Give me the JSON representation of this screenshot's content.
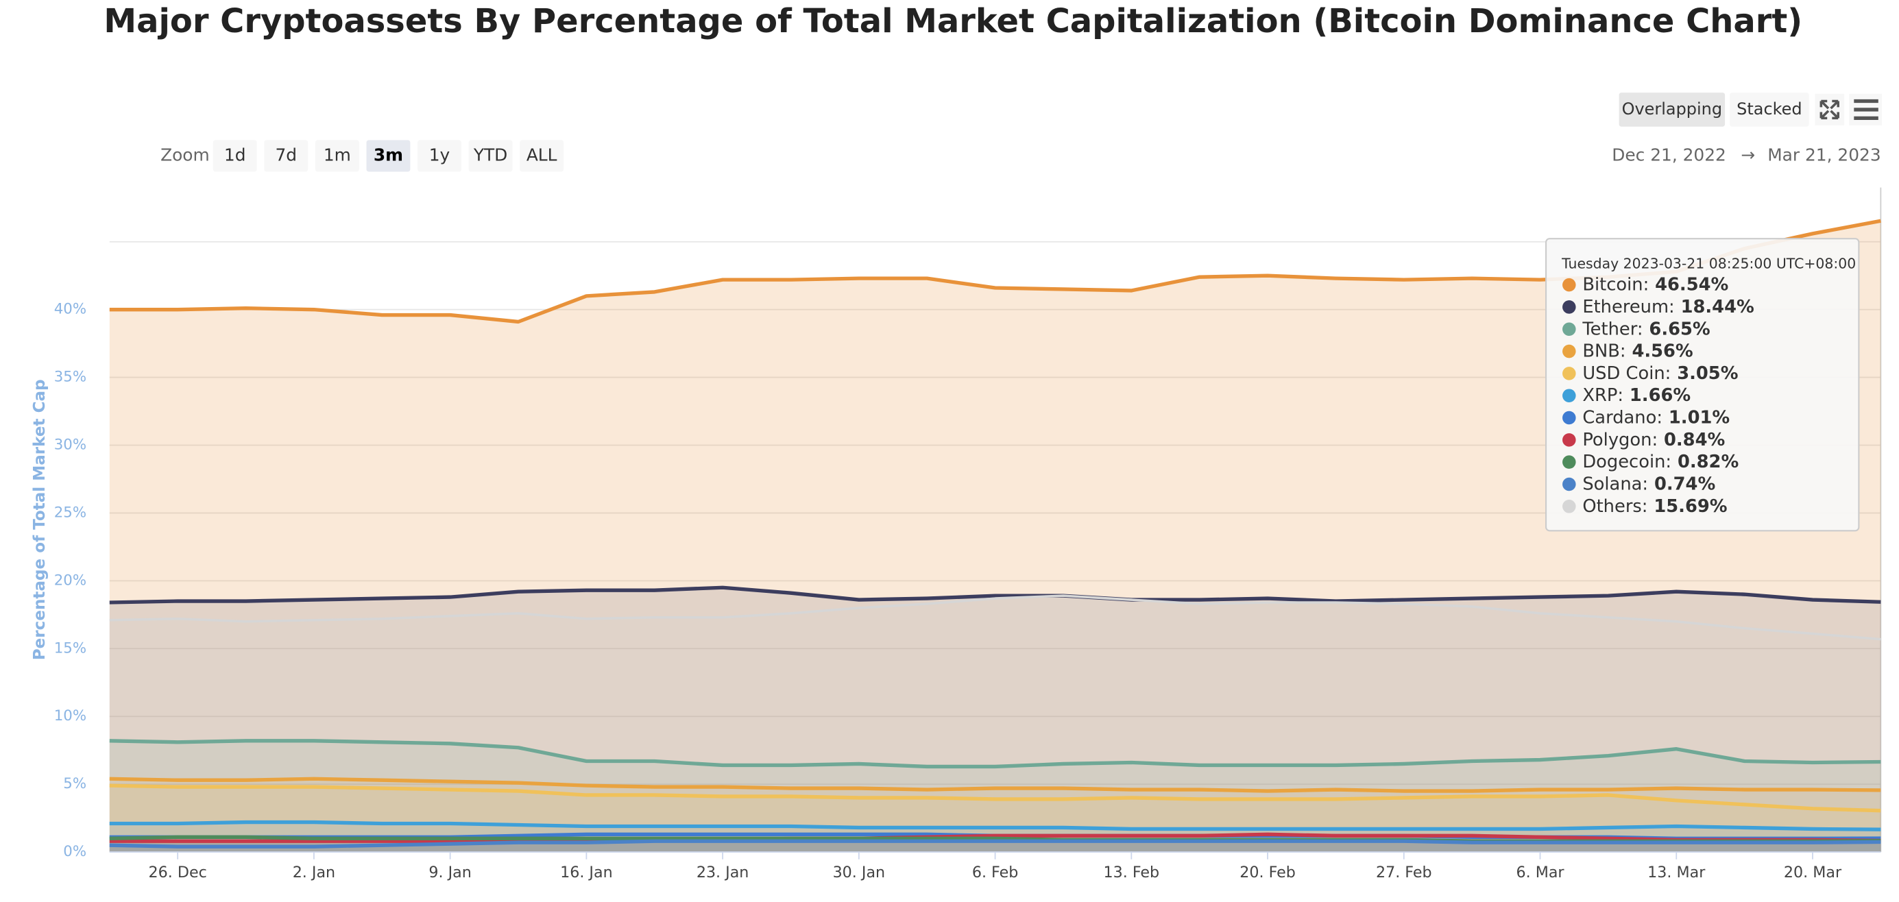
{
  "chart_data": {
    "type": "area",
    "title": "Major Cryptoassets By Percentage of Total Market Capitalization (Bitcoin Dominance Chart)",
    "y_label": "Percentage of Total Market Cap",
    "zoom_label": "Zoom",
    "zoom_buttons": [
      "1d",
      "7d",
      "1m",
      "3m",
      "1y",
      "YTD",
      "ALL"
    ],
    "view_buttons": [
      "Overlapping",
      "Stacked"
    ],
    "range_start": "Dec 21, 2022",
    "range_separator": "→",
    "range_end": "Mar 21, 2023",
    "categories": [
      null,
      "26. Dec",
      null,
      "2. Jan",
      null,
      "9. Jan",
      null,
      "16. Jan",
      null,
      "23. Jan",
      null,
      "30. Jan",
      null,
      "6. Feb",
      null,
      "13. Feb",
      null,
      "20. Feb",
      null,
      "27. Feb",
      null,
      "6. Mar",
      null,
      "13. Mar",
      null,
      "20. Mar",
      null
    ],
    "ylim": [
      0,
      49
    ],
    "yticks": [
      {
        "value": 0,
        "label": "0%"
      },
      {
        "value": 5,
        "label": "5%"
      },
      {
        "value": 10,
        "label": "10%"
      },
      {
        "value": 15,
        "label": "15%"
      },
      {
        "value": 20,
        "label": "20%"
      },
      {
        "value": 25,
        "label": "25%"
      },
      {
        "value": 30,
        "label": "30%"
      },
      {
        "value": 35,
        "label": "35%"
      },
      {
        "value": 40,
        "label": "40%"
      },
      {
        "value": 45,
        "label": null
      }
    ],
    "grid": true,
    "series": [
      {
        "name": "Bitcoin",
        "color": "#e8923a",
        "values": [
          40.0,
          40.0,
          40.1,
          40.0,
          39.6,
          39.6,
          39.1,
          41.0,
          41.3,
          42.2,
          42.2,
          42.3,
          42.3,
          41.6,
          41.5,
          41.4,
          42.4,
          42.5,
          42.3,
          42.2,
          42.3,
          42.2,
          42.4,
          42.8,
          44.5,
          45.6,
          46.54
        ]
      },
      {
        "name": "Ethereum",
        "color": "#3c3d5e",
        "values": [
          18.4,
          18.5,
          18.5,
          18.6,
          18.7,
          18.8,
          19.2,
          19.3,
          19.3,
          19.5,
          19.1,
          18.6,
          18.7,
          18.9,
          18.9,
          18.6,
          18.6,
          18.7,
          18.5,
          18.6,
          18.7,
          18.8,
          18.9,
          19.2,
          19.0,
          18.6,
          18.44
        ]
      },
      {
        "name": "Tether",
        "color": "#6fa896",
        "values": [
          8.2,
          8.1,
          8.2,
          8.2,
          8.1,
          8.0,
          7.7,
          6.7,
          6.7,
          6.4,
          6.4,
          6.5,
          6.3,
          6.3,
          6.5,
          6.6,
          6.4,
          6.4,
          6.4,
          6.5,
          6.7,
          6.8,
          7.1,
          7.6,
          6.7,
          6.6,
          6.65
        ]
      },
      {
        "name": "BNB",
        "color": "#e9a33f",
        "values": [
          5.4,
          5.3,
          5.3,
          5.4,
          5.3,
          5.2,
          5.1,
          4.9,
          4.8,
          4.8,
          4.7,
          4.7,
          4.6,
          4.7,
          4.7,
          4.6,
          4.6,
          4.5,
          4.6,
          4.5,
          4.5,
          4.6,
          4.6,
          4.7,
          4.6,
          4.6,
          4.56
        ]
      },
      {
        "name": "USD Coin",
        "color": "#f0c15a",
        "values": [
          4.9,
          4.8,
          4.8,
          4.8,
          4.7,
          4.6,
          4.5,
          4.2,
          4.2,
          4.1,
          4.1,
          4.0,
          4.0,
          3.9,
          3.9,
          4.0,
          3.9,
          3.9,
          3.9,
          4.0,
          4.1,
          4.1,
          4.2,
          3.8,
          3.5,
          3.2,
          3.05
        ]
      },
      {
        "name": "XRP",
        "color": "#3ea0d9",
        "values": [
          2.1,
          2.1,
          2.2,
          2.2,
          2.1,
          2.1,
          2.0,
          1.9,
          1.9,
          1.9,
          1.9,
          1.8,
          1.8,
          1.8,
          1.8,
          1.7,
          1.7,
          1.7,
          1.7,
          1.7,
          1.7,
          1.7,
          1.8,
          1.9,
          1.8,
          1.7,
          1.66
        ]
      },
      {
        "name": "Cardano",
        "color": "#3e7bd1",
        "values": [
          1.1,
          1.1,
          1.1,
          1.1,
          1.1,
          1.1,
          1.2,
          1.3,
          1.3,
          1.3,
          1.3,
          1.3,
          1.3,
          1.2,
          1.2,
          1.2,
          1.2,
          1.2,
          1.2,
          1.2,
          1.1,
          1.1,
          1.1,
          1.0,
          1.0,
          1.0,
          1.01
        ]
      },
      {
        "name": "Polygon",
        "color": "#c8394a",
        "values": [
          0.8,
          0.8,
          0.8,
          0.8,
          0.8,
          0.8,
          0.9,
          0.9,
          0.9,
          0.9,
          1.0,
          1.0,
          1.1,
          1.2,
          1.2,
          1.2,
          1.2,
          1.3,
          1.2,
          1.2,
          1.2,
          1.1,
          1.0,
          0.9,
          0.9,
          0.9,
          0.84
        ]
      },
      {
        "name": "Dogecoin",
        "color": "#4e8b5b",
        "values": [
          1.0,
          1.1,
          1.1,
          1.0,
          1.0,
          1.0,
          1.0,
          1.0,
          1.0,
          1.0,
          1.0,
          1.0,
          1.0,
          1.0,
          0.9,
          0.9,
          0.9,
          0.9,
          0.9,
          0.9,
          0.8,
          0.8,
          0.8,
          0.8,
          0.8,
          0.8,
          0.82
        ]
      },
      {
        "name": "Solana",
        "color": "#4b82c8",
        "values": [
          0.5,
          0.4,
          0.4,
          0.4,
          0.5,
          0.6,
          0.7,
          0.7,
          0.8,
          0.8,
          0.8,
          0.8,
          0.8,
          0.8,
          0.8,
          0.8,
          0.8,
          0.8,
          0.8,
          0.8,
          0.7,
          0.7,
          0.7,
          0.7,
          0.7,
          0.7,
          0.74
        ]
      },
      {
        "name": "Others",
        "color": "#d6d6d6",
        "values": [
          17.1,
          17.2,
          17.0,
          17.1,
          17.2,
          17.4,
          17.6,
          17.2,
          17.3,
          17.3,
          17.6,
          18.0,
          18.3,
          18.7,
          18.9,
          18.6,
          18.3,
          18.4,
          18.4,
          18.3,
          18.1,
          17.6,
          17.3,
          17.0,
          16.5,
          16.1,
          15.69
        ]
      }
    ],
    "tooltip": {
      "title": "Tuesday 2023-03-21 08:25:00 UTC+08:00",
      "labels": [
        "Bitcoin:",
        "Ethereum:",
        "Tether:",
        "BNB:",
        "USD Coin:",
        "XRP:",
        "Cardano:",
        "Polygon:",
        "Dogecoin:",
        "Solana:",
        "Others:"
      ],
      "values": [
        "46.54%",
        "18.44%",
        "6.65%",
        "4.56%",
        "3.05%",
        "1.66%",
        "1.01%",
        "0.84%",
        "0.82%",
        "0.74%",
        "15.69%"
      ]
    }
  }
}
